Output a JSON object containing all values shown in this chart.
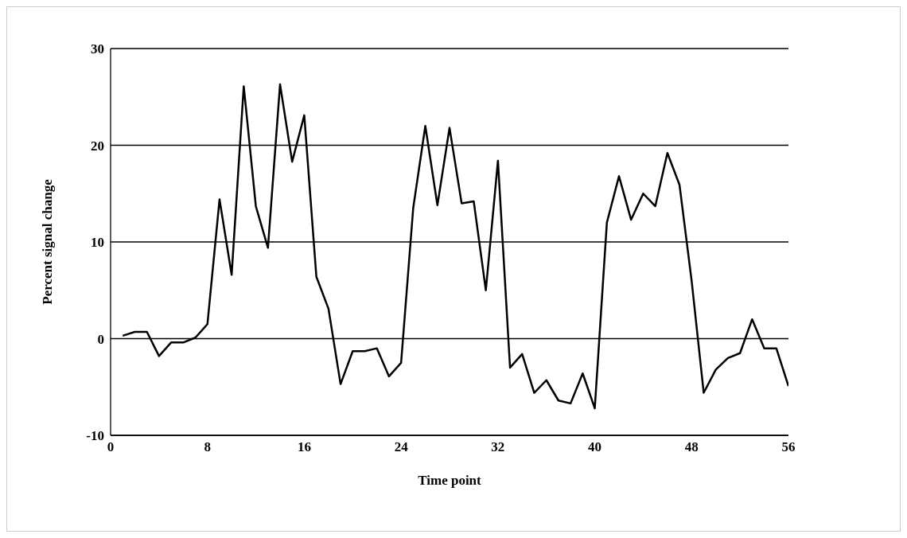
{
  "chart_data": {
    "type": "line",
    "xlabel": "Time point",
    "ylabel": "Percent signal change",
    "x": [
      1,
      2,
      3,
      4,
      5,
      6,
      7,
      8,
      9,
      10,
      11,
      12,
      13,
      14,
      15,
      16,
      17,
      18,
      19,
      20,
      21,
      22,
      23,
      24,
      25,
      26,
      27,
      28,
      29,
      30,
      31,
      32,
      33,
      34,
      35,
      36,
      37,
      38,
      39,
      40,
      41,
      42,
      43,
      44,
      45,
      46,
      47,
      48,
      49,
      50,
      51,
      52,
      53,
      54,
      55,
      56
    ],
    "series": [
      {
        "color": "#000000",
        "values": [
          0.3,
          0.7,
          0.7,
          -1.8,
          -0.4,
          -0.4,
          0.1,
          1.5,
          14.4,
          6.6,
          26.1,
          13.7,
          9.4,
          26.3,
          18.3,
          23.1,
          6.4,
          3.1,
          -4.7,
          -1.3,
          -1.3,
          -1.0,
          -3.9,
          -2.5,
          13.5,
          22.0,
          13.8,
          21.8,
          14.0,
          14.2,
          5.0,
          18.4,
          -3.0,
          -1.6,
          -5.6,
          -4.3,
          -6.4,
          -6.7,
          -3.6,
          -7.2,
          12.0,
          16.8,
          12.3,
          15.0,
          13.7,
          19.2,
          15.9,
          6.0,
          -5.6,
          -3.2,
          -2.0,
          -1.5,
          2.0,
          -1.0,
          -1.0,
          -4.9
        ]
      }
    ],
    "xlim": [
      0,
      56
    ],
    "xticks": [
      0,
      8,
      16,
      24,
      32,
      40,
      48,
      56
    ],
    "ylim": [
      -10,
      30
    ],
    "yticks": [
      -10,
      0,
      10,
      20,
      30
    ],
    "grid": "y",
    "marker": "none",
    "line_style": "solid"
  }
}
